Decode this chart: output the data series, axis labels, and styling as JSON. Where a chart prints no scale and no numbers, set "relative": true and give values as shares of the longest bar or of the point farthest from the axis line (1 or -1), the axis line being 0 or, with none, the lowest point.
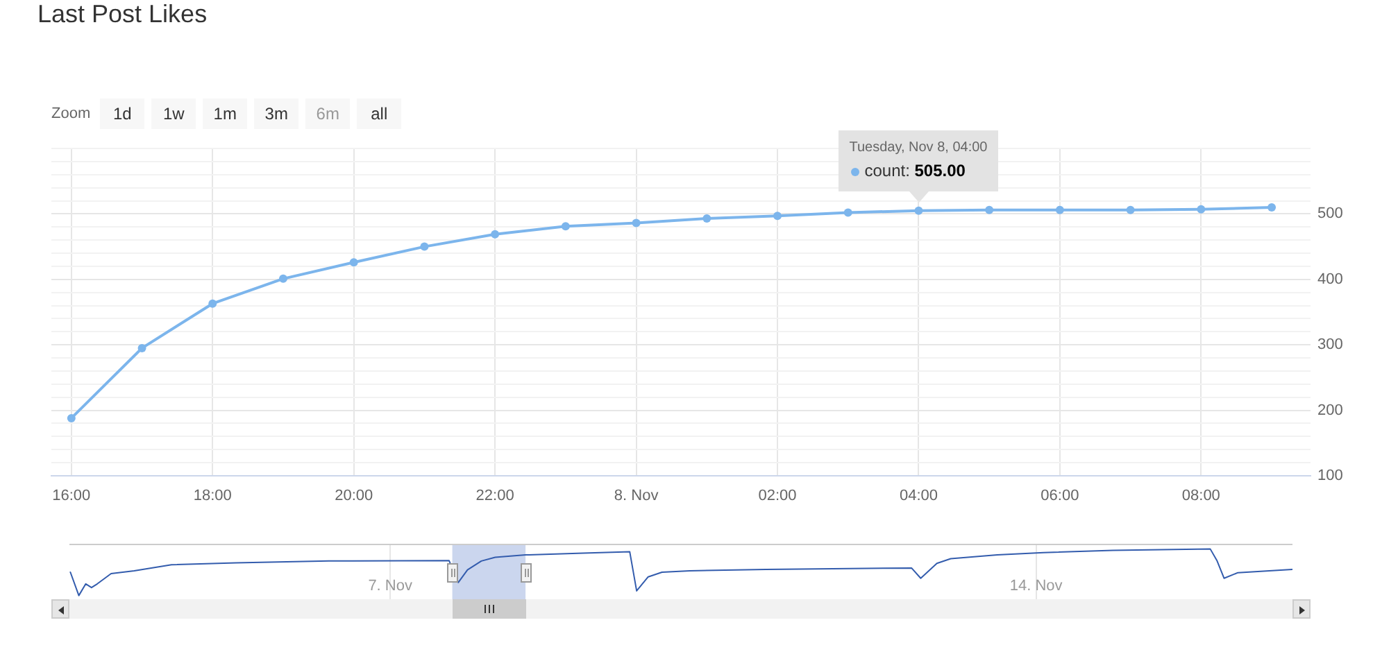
{
  "chart_data": [
    {
      "type": "line",
      "title": "Last Post Likes",
      "x": [
        "--11-07T16:00",
        "--11-07T17:00",
        "--11-07T18:00",
        "--11-07T19:00",
        "--11-07T20:00",
        "--11-07T21:00",
        "--11-07T22:00",
        "--11-07T23:00",
        "--11-08T00:00",
        "--11-08T01:00",
        "--11-08T02:00",
        "--11-08T03:00",
        "--11-08T04:00",
        "--11-08T05:00",
        "--11-08T06:00",
        "--11-08T07:00",
        "--11-08T08:00",
        "--11-08T09:00"
      ],
      "series": [
        {
          "name": "count:",
          "color": "#7cb5ec",
          "values": [
            188,
            295,
            363,
            401,
            426,
            450,
            469,
            481,
            486,
            493,
            497,
            502,
            505,
            506,
            506,
            506,
            507,
            510
          ],
          "value_labels": [
            null,
            null,
            null,
            null,
            null,
            null,
            null,
            null,
            null,
            null,
            null,
            null,
            "505.00",
            null,
            null,
            null,
            null,
            null
          ]
        }
      ],
      "xlim": [
        "--11-07T15:43",
        "--11-08T09:33"
      ],
      "xticks": [
        {
          "value": "--11-07T16:00",
          "label": "16:00"
        },
        {
          "value": "--11-07T18:00",
          "label": "18:00"
        },
        {
          "value": "--11-07T20:00",
          "label": "20:00"
        },
        {
          "value": "--11-07T22:00",
          "label": "22:00"
        },
        {
          "value": "--11-08T00:00",
          "label": "8. Nov"
        },
        {
          "value": "--11-08T02:00",
          "label": "02:00"
        },
        {
          "value": "--11-08T04:00",
          "label": "04:00"
        },
        {
          "value": "--11-08T06:00",
          "label": "06:00"
        },
        {
          "value": "--11-08T08:00",
          "label": "08:00"
        }
      ],
      "ylim": [
        100,
        600
      ],
      "yticks": [
        100,
        {
          "value": 120,
          "label": null
        },
        {
          "value": 140,
          "label": null
        },
        {
          "value": 160,
          "label": null
        },
        {
          "value": 180,
          "label": null
        },
        200,
        {
          "value": 220,
          "label": null
        },
        {
          "value": 240,
          "label": null
        },
        {
          "value": 260,
          "label": null
        },
        {
          "value": 280,
          "label": null
        },
        300,
        {
          "value": 320,
          "label": null
        },
        {
          "value": 340,
          "label": null
        },
        {
          "value": 360,
          "label": null
        },
        {
          "value": 380,
          "label": null
        },
        400,
        {
          "value": 420,
          "label": null
        },
        {
          "value": 440,
          "label": null
        },
        {
          "value": 460,
          "label": null
        },
        {
          "value": 480,
          "label": null
        },
        500,
        {
          "value": 520,
          "label": null
        },
        {
          "value": 540,
          "label": null
        },
        {
          "value": 560,
          "label": null
        },
        {
          "value": 580,
          "label": null
        },
        {
          "value": 600,
          "label": null
        }
      ],
      "grid": true,
      "marker": "circle",
      "annotations": [
        "Zoom",
        "1d",
        "1w",
        "1m",
        "3m",
        "6m",
        "all",
        "Tuesday, Nov 8, 04:00"
      ]
    },
    {
      "type": "line",
      "relative": true,
      "x": [
        "--11-03T12:48",
        "--11-03T15:00",
        "--11-03T16:48",
        "--11-03T18:18",
        "--11-03T19:48",
        "--11-03T23:24",
        "--11-04T05:24",
        "--11-04T15:06",
        "--11-05T07:54",
        "--11-06T08:00",
        "--11-07T15:18",
        "--11-07T17:42",
        "--11-07T20:06",
        "--11-07T23:42",
        "--11-08T03:18",
        "--11-08T11:12",
        "--11-09T02:12",
        "--11-09T14:18",
        "--11-09T16:06",
        "--11-09T19:06",
        "--11-09T22:42",
        "--11-10T05:54",
        "--11-11T01:42",
        "--11-12T15:36",
        "--11-12T18:00",
        "--11-12T22:12",
        "--11-13T01:48",
        "--11-13T13:54",
        "--11-14T01:54",
        "--11-14T20:00",
        "--11-15T21:18",
        "--11-15T23:06",
        "--11-16T00:54",
        "--11-16T04:30",
        "--11-16T18:36"
      ],
      "values": [
        0.5,
        0,
        0.25,
        0.17,
        0.25,
        0.47,
        0.53,
        0.66,
        0.7,
        0.74,
        0.75,
        0.28,
        0.55,
        0.74,
        0.82,
        0.87,
        0.91,
        0.94,
        0.1,
        0.4,
        0.5,
        0.53,
        0.56,
        0.59,
        0.37,
        0.69,
        0.79,
        0.87,
        0.92,
        0.97,
        1.0,
        0.74,
        0.37,
        0.49,
        0.56
      ],
      "color": "#335cad",
      "xlim": [
        "--11-03T12:33",
        "--11-16T18:42"
      ],
      "xticks": [
        {
          "value": "--11-07",
          "label": "7. Nov"
        },
        {
          "value": "--11-14",
          "label": "14. Nov"
        }
      ],
      "grid": "x",
      "bands": [
        {
          "axis": "x",
          "from": "--11-07T16:09",
          "to": "--11-08T11:12",
          "color": "#cbd6ee"
        }
      ]
    }
  ]
}
